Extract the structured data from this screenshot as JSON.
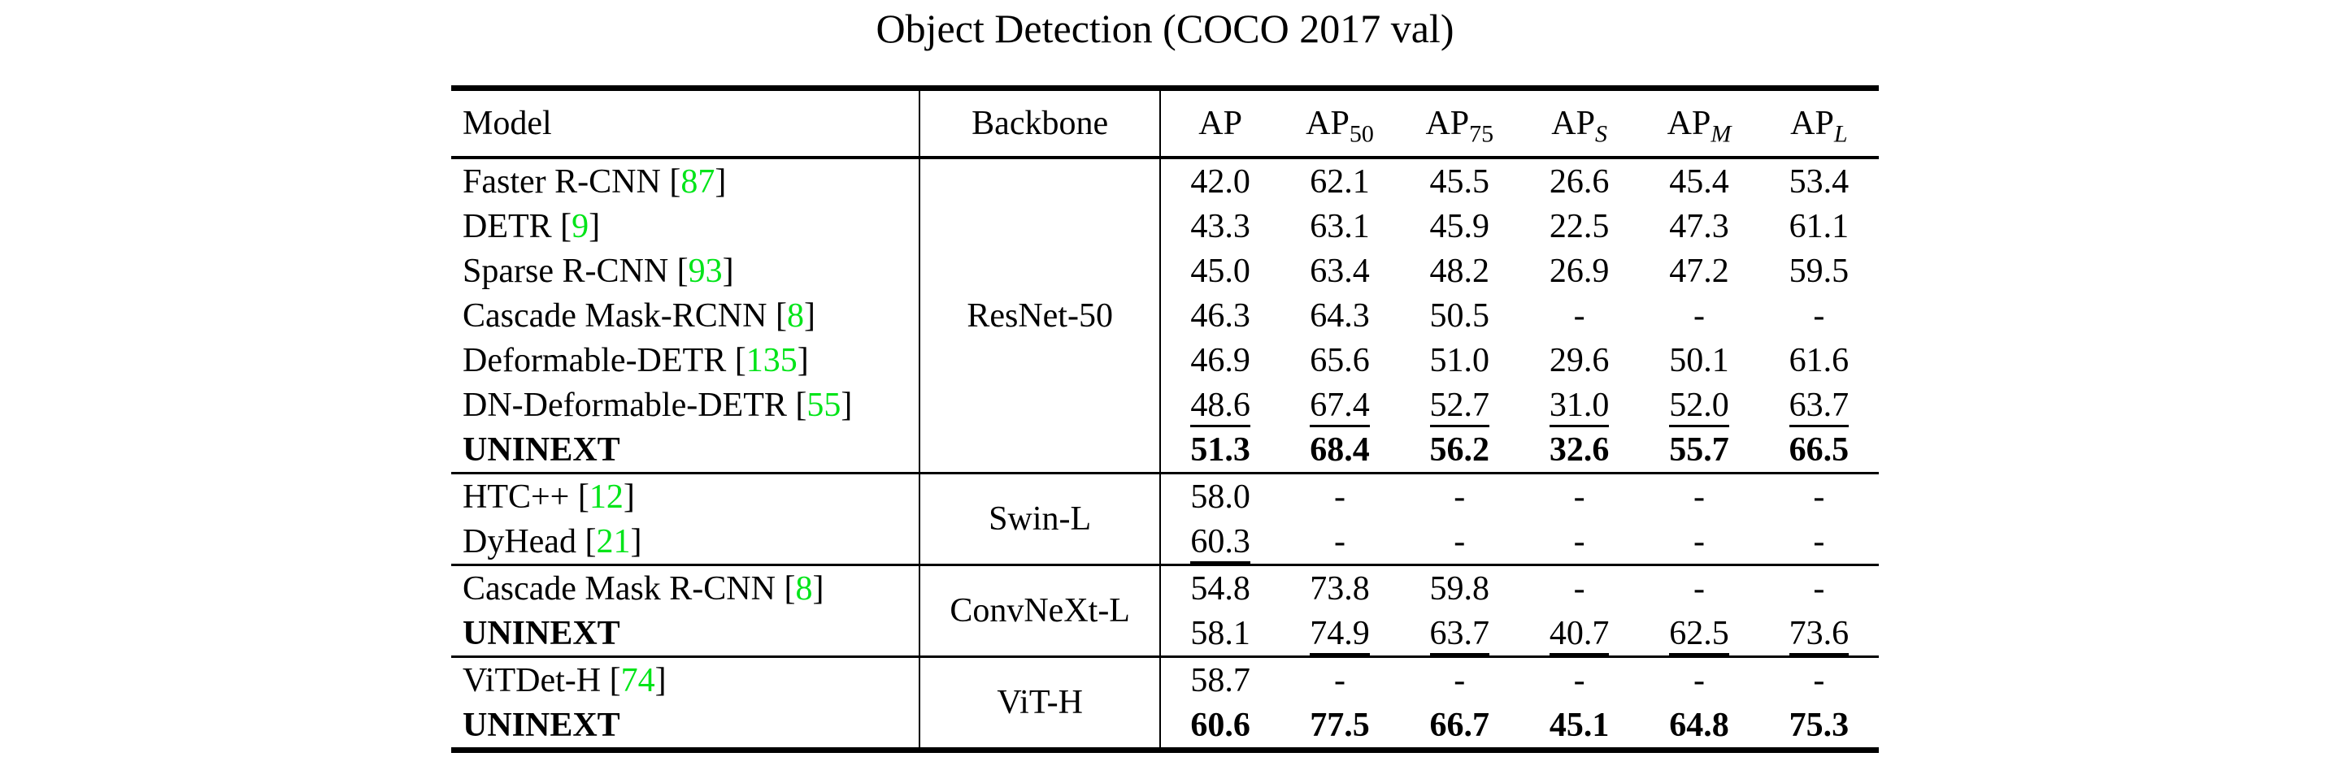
{
  "title": "Object Detection (COCO 2017 val)",
  "colors": {
    "citation_green": "#00e418",
    "text": "#000000"
  },
  "table": {
    "header": {
      "model": "Model",
      "backbone": "Backbone",
      "metrics": [
        {
          "base": "AP",
          "sub": ""
        },
        {
          "base": "AP",
          "sub": "50"
        },
        {
          "base": "AP",
          "sub": "75"
        },
        {
          "base": "AP",
          "sub": "S"
        },
        {
          "base": "AP",
          "sub": "M"
        },
        {
          "base": "AP",
          "sub": "L"
        }
      ]
    },
    "backbones": [
      "ResNet-50",
      "Swin-L",
      "ConvNeXt-L",
      "ViT-H"
    ],
    "rows": [
      {
        "model": "Faster R-CNN ",
        "open": "[",
        "cite": "87",
        "close": "]",
        "values": [
          "42.0",
          "62.1",
          "45.5",
          "26.6",
          "45.4",
          "53.4"
        ]
      },
      {
        "model": "DETR ",
        "open": "[",
        "cite": "9",
        "close": "]",
        "values": [
          "43.3",
          "63.1",
          "45.9",
          "22.5",
          "47.3",
          "61.1"
        ]
      },
      {
        "model": "Sparse R-CNN ",
        "open": "[",
        "cite": "93",
        "close": "]",
        "values": [
          "45.0",
          "63.4",
          "48.2",
          "26.9",
          "47.2",
          "59.5"
        ]
      },
      {
        "model": "Cascade Mask-RCNN ",
        "open": "[",
        "cite": "8",
        "close": "]",
        "values": [
          "46.3",
          "64.3",
          "50.5",
          "-",
          "-",
          "-"
        ]
      },
      {
        "model": "Deformable-DETR ",
        "open": "[",
        "cite": "135",
        "close": "]",
        "values": [
          "46.9",
          "65.6",
          "51.0",
          "29.6",
          "50.1",
          "61.6"
        ]
      },
      {
        "model": "DN-Deformable-DETR ",
        "open": "[",
        "cite": "55",
        "close": "]",
        "values": [
          "48.6",
          "67.4",
          "52.7",
          "31.0",
          "52.0",
          "63.7"
        ]
      },
      {
        "model": "UNINEXT",
        "open": "",
        "cite": "",
        "close": "",
        "values": [
          "51.3",
          "68.4",
          "56.2",
          "32.6",
          "55.7",
          "66.5"
        ]
      },
      {
        "model": "HTC++ ",
        "open": "[",
        "cite": "12",
        "close": "]",
        "values": [
          "58.0",
          "-",
          "-",
          "-",
          "-",
          "-"
        ]
      },
      {
        "model": "DyHead ",
        "open": "[",
        "cite": "21",
        "close": "]",
        "values": [
          "60.3",
          "-",
          "-",
          "-",
          "-",
          "-"
        ]
      },
      {
        "model": "Cascade Mask R-CNN ",
        "open": "[",
        "cite": "8",
        "close": "]",
        "values": [
          "54.8",
          "73.8",
          "59.8",
          "-",
          "-",
          "-"
        ]
      },
      {
        "model": "UNINEXT",
        "open": "",
        "cite": "",
        "close": "",
        "values": [
          "58.1",
          "74.9",
          "63.7",
          "40.7",
          "62.5",
          "73.6"
        ]
      },
      {
        "model": "ViTDet-H ",
        "open": "[",
        "cite": "74",
        "close": "]",
        "values": [
          "58.7",
          "-",
          "-",
          "-",
          "-",
          "-"
        ]
      },
      {
        "model": "UNINEXT",
        "open": "",
        "cite": "",
        "close": "",
        "values": [
          "60.6",
          "77.5",
          "66.7",
          "45.1",
          "64.8",
          "75.3"
        ]
      }
    ]
  }
}
